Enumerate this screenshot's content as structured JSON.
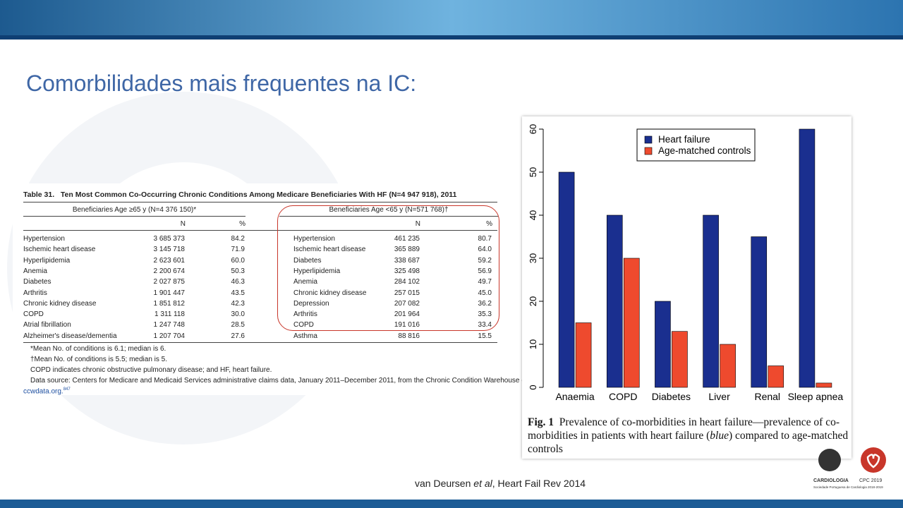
{
  "title": "Comorbilidades mais frequentes na IC:",
  "table": {
    "caption": "Table 31.   Ten Most Common Co-Occurring Chronic Conditions Among Medicare Beneficiaries With HF (N=4 947 918), 2011",
    "groups": [
      "Beneficiaries Age ≥65 y (N=4 376 150)*",
      "Beneficiaries Age <65 y (N=571 768)†"
    ],
    "columns": [
      "N",
      "%"
    ],
    "left_rows": [
      [
        "Hypertension",
        "3 685 373",
        "84.2"
      ],
      [
        "Ischemic heart disease",
        "3 145 718",
        "71.9"
      ],
      [
        "Hyperlipidemia",
        "2 623 601",
        "60.0"
      ],
      [
        "Anemia",
        "2 200 674",
        "50.3"
      ],
      [
        "Diabetes",
        "2 027 875",
        "46.3"
      ],
      [
        "Arthritis",
        "1 901 447",
        "43.5"
      ],
      [
        "Chronic kidney disease",
        "1 851 812",
        "42.3"
      ],
      [
        "COPD",
        "1 311 118",
        "30.0"
      ],
      [
        "Atrial fibrillation",
        "1 247 748",
        "28.5"
      ],
      [
        "Alzheimer's disease/dementia",
        "1 207 704",
        "27.6"
      ]
    ],
    "right_rows": [
      [
        "Hypertension",
        "461 235",
        "80.7"
      ],
      [
        "Ischemic heart disease",
        "365 889",
        "64.0"
      ],
      [
        "Diabetes",
        "338 687",
        "59.2"
      ],
      [
        "Hyperlipidemia",
        "325 498",
        "56.9"
      ],
      [
        "Anemia",
        "284 102",
        "49.7"
      ],
      [
        "Chronic kidney disease",
        "257 015",
        "45.0"
      ],
      [
        "Depression",
        "207 082",
        "36.2"
      ],
      [
        "Arthritis",
        "201 964",
        "35.3"
      ],
      [
        "COPD",
        "191 016",
        "33.4"
      ],
      [
        "Asthma",
        "88 816",
        "15.5"
      ]
    ],
    "footnotes": [
      "*Mean No. of conditions is 6.1; median is 6.",
      "†Mean No. of conditions is 5.5; median is 5.",
      "COPD indicates chronic obstructive pulmonary disease; and HF, heart failure.",
      "Data source: Centers for Medicare and Medicaid Services administrative claims data, January 2011–December 2011, from the Chronic Condition Warehouse (CCW),"
    ],
    "link": "ccwdata.org.",
    "reference": "847"
  },
  "chart_data": {
    "type": "bar",
    "categories": [
      "Anaemia",
      "COPD",
      "Diabetes",
      "Liver",
      "Renal",
      "Sleep apnea"
    ],
    "series": [
      {
        "name": "Heart failure",
        "color": "#1a2f8f",
        "values": [
          50,
          40,
          20,
          40,
          35,
          60
        ]
      },
      {
        "name": "Age-matched controls",
        "color": "#ee4a2e",
        "values": [
          15,
          30,
          13,
          10,
          5,
          1
        ]
      }
    ],
    "ylim": [
      0,
      60
    ],
    "yticks": [
      0,
      10,
      20,
      30,
      40,
      50,
      60
    ],
    "legend": "top-right",
    "caption_label": "Fig. 1",
    "caption": [
      "Prevalence of co-morbidities in heart failure—prevalence of co-morbidities in patients with heart failure (",
      "blue",
      ") compared to age-matched controls"
    ]
  },
  "citation": [
    "van Deursen ",
    "et al",
    ", Heart Fail Rev 2014"
  ],
  "logos": [
    "CARDIOLOGIA",
    "CPC 2019",
    "Sociedade Portuguesa de Cardiologia 2018-2019"
  ]
}
